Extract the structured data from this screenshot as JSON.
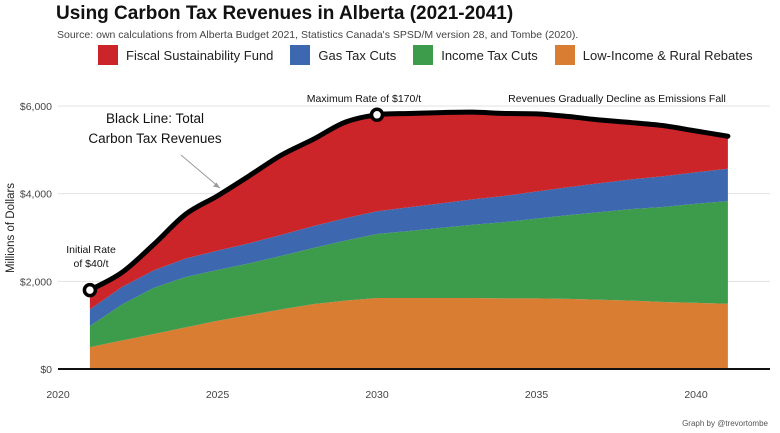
{
  "title": "Using Carbon Tax Revenues in Alberta (2021-2041)",
  "subtitle": "Source: own calculations from Alberta Budget 2021, Statistics Canada's SPSD/M version 28, and Tombe (2020).",
  "credit": "Graph by @trevortombe",
  "colors": {
    "Fiscal Sustainability Fund": "#cc2529",
    "Gas Tax Cuts": "#3d68b0",
    "Income Tax Cuts": "#3d9b4c",
    "Low-Income & Rural Rebates": "#d97d33",
    "Total": "#000000"
  },
  "legend": [
    {
      "label": "Fiscal Sustainability Fund"
    },
    {
      "label": "Gas Tax Cuts"
    },
    {
      "label": "Income Tax Cuts"
    },
    {
      "label": "Low-Income & Rural Rebates"
    }
  ],
  "chart_data": {
    "type": "area",
    "title": "Using Carbon Tax Revenues in Alberta (2021-2041)",
    "ylabel": "Millions of Dollars",
    "xlabel": "",
    "xlim": [
      2020,
      2042
    ],
    "ylim": [
      0,
      6400
    ],
    "x_ticks": [
      2020,
      2025,
      2030,
      2035,
      2040
    ],
    "y_ticks": [
      0,
      2000,
      4000,
      6000
    ],
    "y_tick_labels": [
      "$0",
      "$2,000",
      "$4,000",
      "$6,000"
    ],
    "grid": true,
    "stacked": true,
    "legend_position": "top",
    "x": [
      2021,
      2022,
      2023,
      2024,
      2025,
      2026,
      2027,
      2028,
      2029,
      2030,
      2031,
      2032,
      2033,
      2034,
      2035,
      2036,
      2037,
      2038,
      2039,
      2040,
      2041
    ],
    "series": [
      {
        "name": "Low-Income & Rural Rebates",
        "values": [
          500,
          650,
          800,
          950,
          1100,
          1230,
          1360,
          1480,
          1560,
          1620,
          1620,
          1620,
          1620,
          1610,
          1610,
          1600,
          1580,
          1560,
          1530,
          1510,
          1490
        ]
      },
      {
        "name": "Income Tax Cuts",
        "values": [
          480,
          820,
          1050,
          1150,
          1160,
          1180,
          1220,
          1280,
          1370,
          1460,
          1530,
          1600,
          1670,
          1740,
          1820,
          1910,
          2000,
          2090,
          2170,
          2260,
          2340
        ]
      },
      {
        "name": "Gas Tax Cuts",
        "values": [
          380,
          400,
          400,
          420,
          440,
          460,
          480,
          500,
          510,
          520,
          540,
          560,
          580,
          600,
          620,
          640,
          660,
          680,
          700,
          720,
          740
        ]
      },
      {
        "name": "Fiscal Sustainability Fund",
        "values": [
          440,
          330,
          590,
          1010,
          1250,
          1540,
          1820,
          1980,
          2190,
          2200,
          2140,
          2070,
          1990,
          1880,
          1770,
          1610,
          1440,
          1290,
          1150,
          940,
          740
        ]
      }
    ],
    "total": {
      "name": "Black Line: Total Carbon Tax Revenues",
      "values": [
        1800,
        2200,
        2840,
        3530,
        3950,
        4410,
        4880,
        5240,
        5630,
        5800,
        5830,
        5850,
        5860,
        5830,
        5820,
        5760,
        5680,
        5620,
        5550,
        5430,
        5310
      ]
    },
    "annotations": [
      {
        "text": "Initial Rate",
        "text2": "of $40/t",
        "x": 2021,
        "y": 1800
      },
      {
        "text": "Maximum Rate of $170/t",
        "x": 2030,
        "y": 5800
      },
      {
        "text": "Revenues Gradually Decline as Emissions Fall"
      },
      {
        "text": "Black Line: Total",
        "text2": "Carbon Tax Revenues"
      }
    ]
  }
}
